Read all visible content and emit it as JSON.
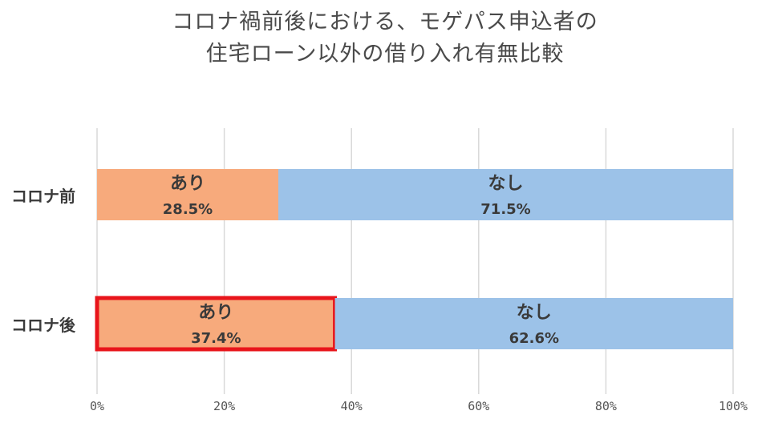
{
  "title_lines": [
    "コロナ禍前後における、モゲパス申込者の",
    "住宅ローン以外の借り入れ有無比較"
  ],
  "chart_data": {
    "type": "bar",
    "orientation": "horizontal",
    "stacked": true,
    "percent_stacked": true,
    "title": "コロナ禍前後における、モゲパス申込者の住宅ローン以外の借り入れ有無比較",
    "categories": [
      "コロナ前",
      "コロナ後"
    ],
    "series": [
      {
        "name": "あり",
        "values": [
          28.5,
          37.4
        ],
        "labels": [
          "28.5%",
          "37.4%"
        ],
        "color": "#f7aa7c"
      },
      {
        "name": "なし",
        "values": [
          71.5,
          62.6
        ],
        "labels": [
          "71.5%",
          "62.6%"
        ],
        "color": "#9cc2e8"
      }
    ],
    "xlim": [
      0,
      100
    ],
    "xticks": [
      "0%",
      "20%",
      "40%",
      "60%",
      "80%",
      "100%"
    ],
    "grid": true,
    "legend": "none",
    "highlight": {
      "category": "コロナ後",
      "series": "あり",
      "color": "#e8151b"
    }
  }
}
